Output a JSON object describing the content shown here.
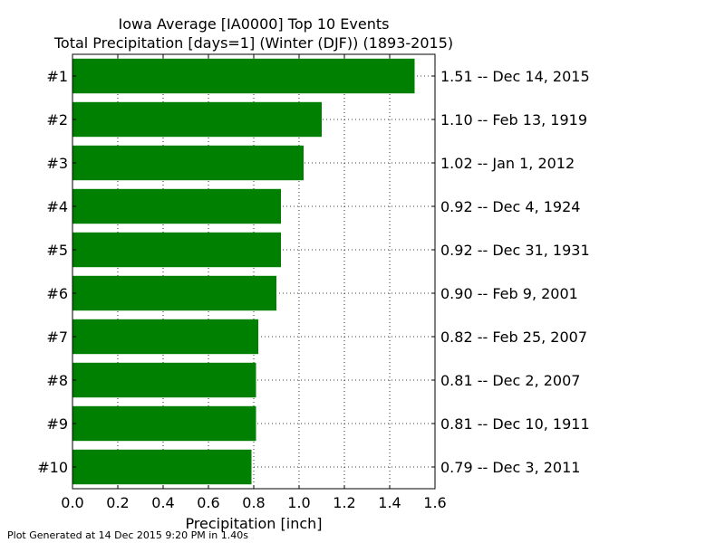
{
  "chart_data": {
    "type": "bar",
    "orientation": "horizontal",
    "title": "Iowa Average [IA0000] Top 10 Events",
    "subtitle": "Total Precipitation [days=1] (Winter (DJF)) (1893-2015)",
    "xlabel": "Precipitation [inch]",
    "xlim": [
      0,
      1.6
    ],
    "xticks": [
      "0.0",
      "0.2",
      "0.4",
      "0.6",
      "0.8",
      "1.0",
      "1.2",
      "1.4",
      "1.6"
    ],
    "grid": true,
    "bar_color": "#008000",
    "categories": [
      "#1",
      "#2",
      "#3",
      "#4",
      "#5",
      "#6",
      "#7",
      "#8",
      "#9",
      "#10"
    ],
    "values": [
      1.51,
      1.1,
      1.02,
      0.92,
      0.92,
      0.9,
      0.82,
      0.81,
      0.81,
      0.79
    ],
    "labels": [
      "1.51 -- Dec 14, 2015",
      "1.10 -- Feb 13, 1919",
      "1.02 -- Jan 1, 2012",
      "0.92 -- Dec 4, 1924",
      "0.92 -- Dec 31, 1931",
      "0.90 -- Feb 9, 2001",
      "0.82 -- Feb 25, 2007",
      "0.81 -- Dec 2, 2007",
      "0.81 -- Dec 10, 1911",
      "0.79 -- Dec 3, 2011"
    ]
  },
  "footer": "Plot Generated at 14 Dec 2015 9:20 PM in 1.40s"
}
